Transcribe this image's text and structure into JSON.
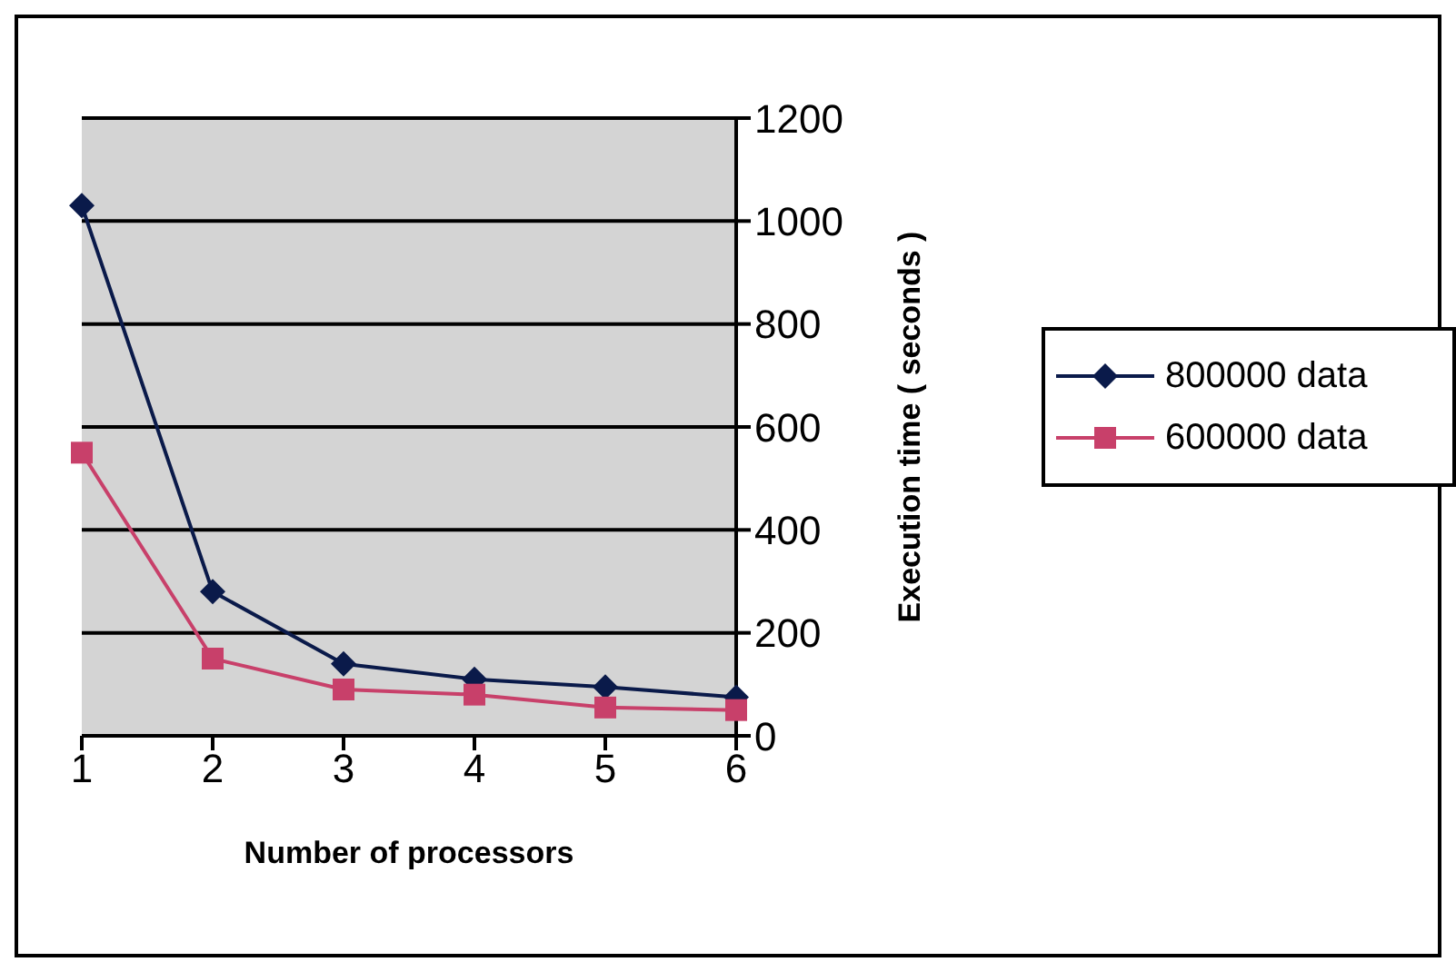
{
  "chart_data": {
    "type": "line",
    "xlabel": "Number of processors",
    "ylabel": "Execution time ( seconds )",
    "categories": [
      "1",
      "2",
      "3",
      "4",
      "5",
      "6"
    ],
    "series": [
      {
        "name": "800000 data",
        "color": "#0a1a4a",
        "marker": "diamond",
        "values": [
          1030,
          280,
          140,
          110,
          95,
          75
        ]
      },
      {
        "name": "600000 data",
        "color": "#c8406a",
        "marker": "square",
        "values": [
          550,
          150,
          90,
          80,
          55,
          50
        ]
      }
    ],
    "ylim": [
      0,
      1200
    ],
    "yticks": [
      0,
      200,
      400,
      600,
      800,
      1000,
      1200
    ],
    "grid": "y",
    "legend": "right"
  }
}
